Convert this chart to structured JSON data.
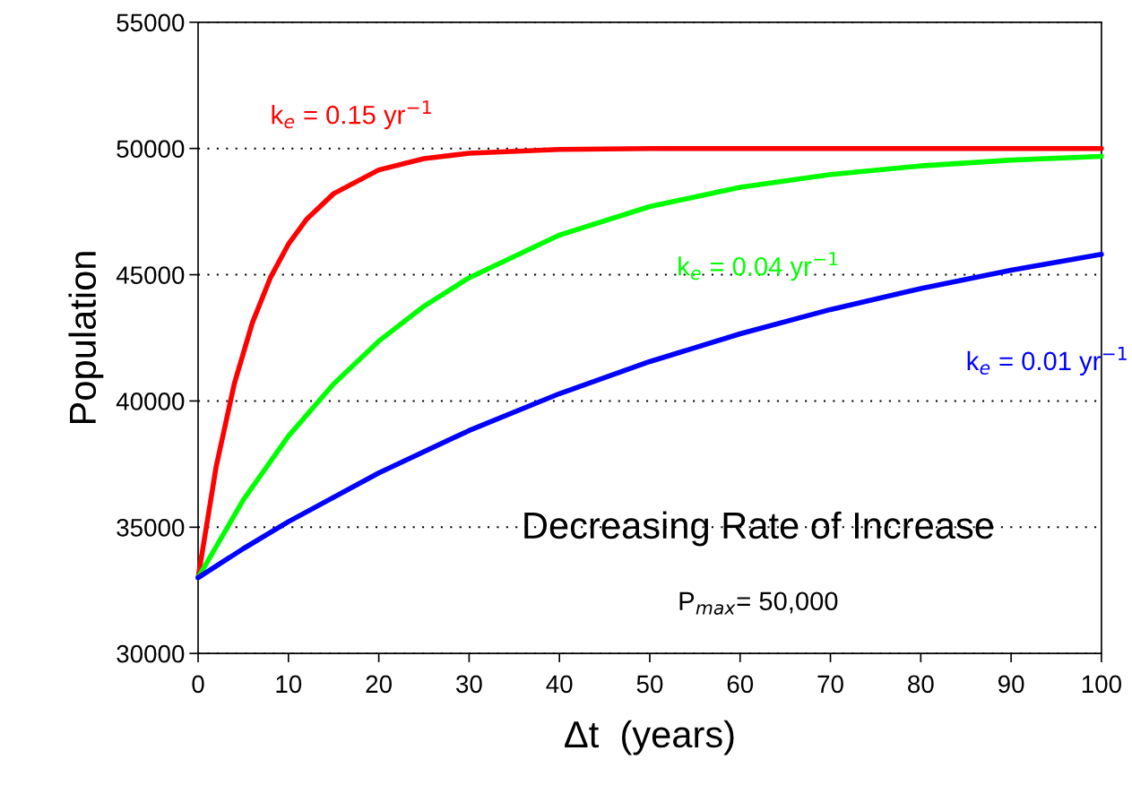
{
  "chart_data": {
    "type": "line",
    "xlabel": "Δt  (years)",
    "ylabel": "Population",
    "xlim": [
      0,
      100
    ],
    "xticks": [
      0,
      10,
      20,
      30,
      40,
      50,
      60,
      70,
      80,
      90,
      100
    ],
    "ylim": [
      30000,
      55000
    ],
    "yticks": [
      30000,
      35000,
      40000,
      45000,
      50000,
      55000
    ],
    "grid": "y",
    "line_style": "solid",
    "marker": "none",
    "legend": false,
    "annotations": [
      "Decreasing Rate of Increase",
      "P$_{max}$= 50,000"
    ],
    "series": [
      {
        "name": "k$_{e}$ = 0.15 yr$^{−1}$",
        "color": "#ff0000",
        "x": [
          0,
          2,
          4,
          6,
          8,
          10,
          12,
          15,
          20,
          25,
          30,
          40,
          50,
          60,
          70,
          80,
          90,
          100
        ],
        "values": [
          33000,
          37400,
          40670,
          43090,
          44880,
          46210,
          47190,
          48210,
          49150,
          49600,
          49810,
          49960,
          50000,
          50000,
          50000,
          50000,
          50000,
          50000
        ]
      },
      {
        "name": "k$_{e}$ = 0.04 yr$^{−1}$",
        "color": "#00ff00",
        "x": [
          0,
          5,
          10,
          15,
          20,
          25,
          30,
          40,
          50,
          60,
          70,
          80,
          90,
          100
        ],
        "values": [
          33000,
          36080,
          38610,
          40670,
          42370,
          43750,
          44880,
          46570,
          47700,
          48460,
          48970,
          49310,
          49540,
          49690
        ]
      },
      {
        "name": "k$_{e}$ = 0.01 yr$^{−1}$",
        "color": "#0000ff",
        "x": [
          0,
          5,
          10,
          20,
          30,
          40,
          50,
          60,
          70,
          80,
          90,
          100
        ],
        "values": [
          33000,
          34150,
          35220,
          37150,
          38830,
          40290,
          41560,
          42660,
          43620,
          44450,
          45180,
          45810
        ]
      }
    ]
  }
}
